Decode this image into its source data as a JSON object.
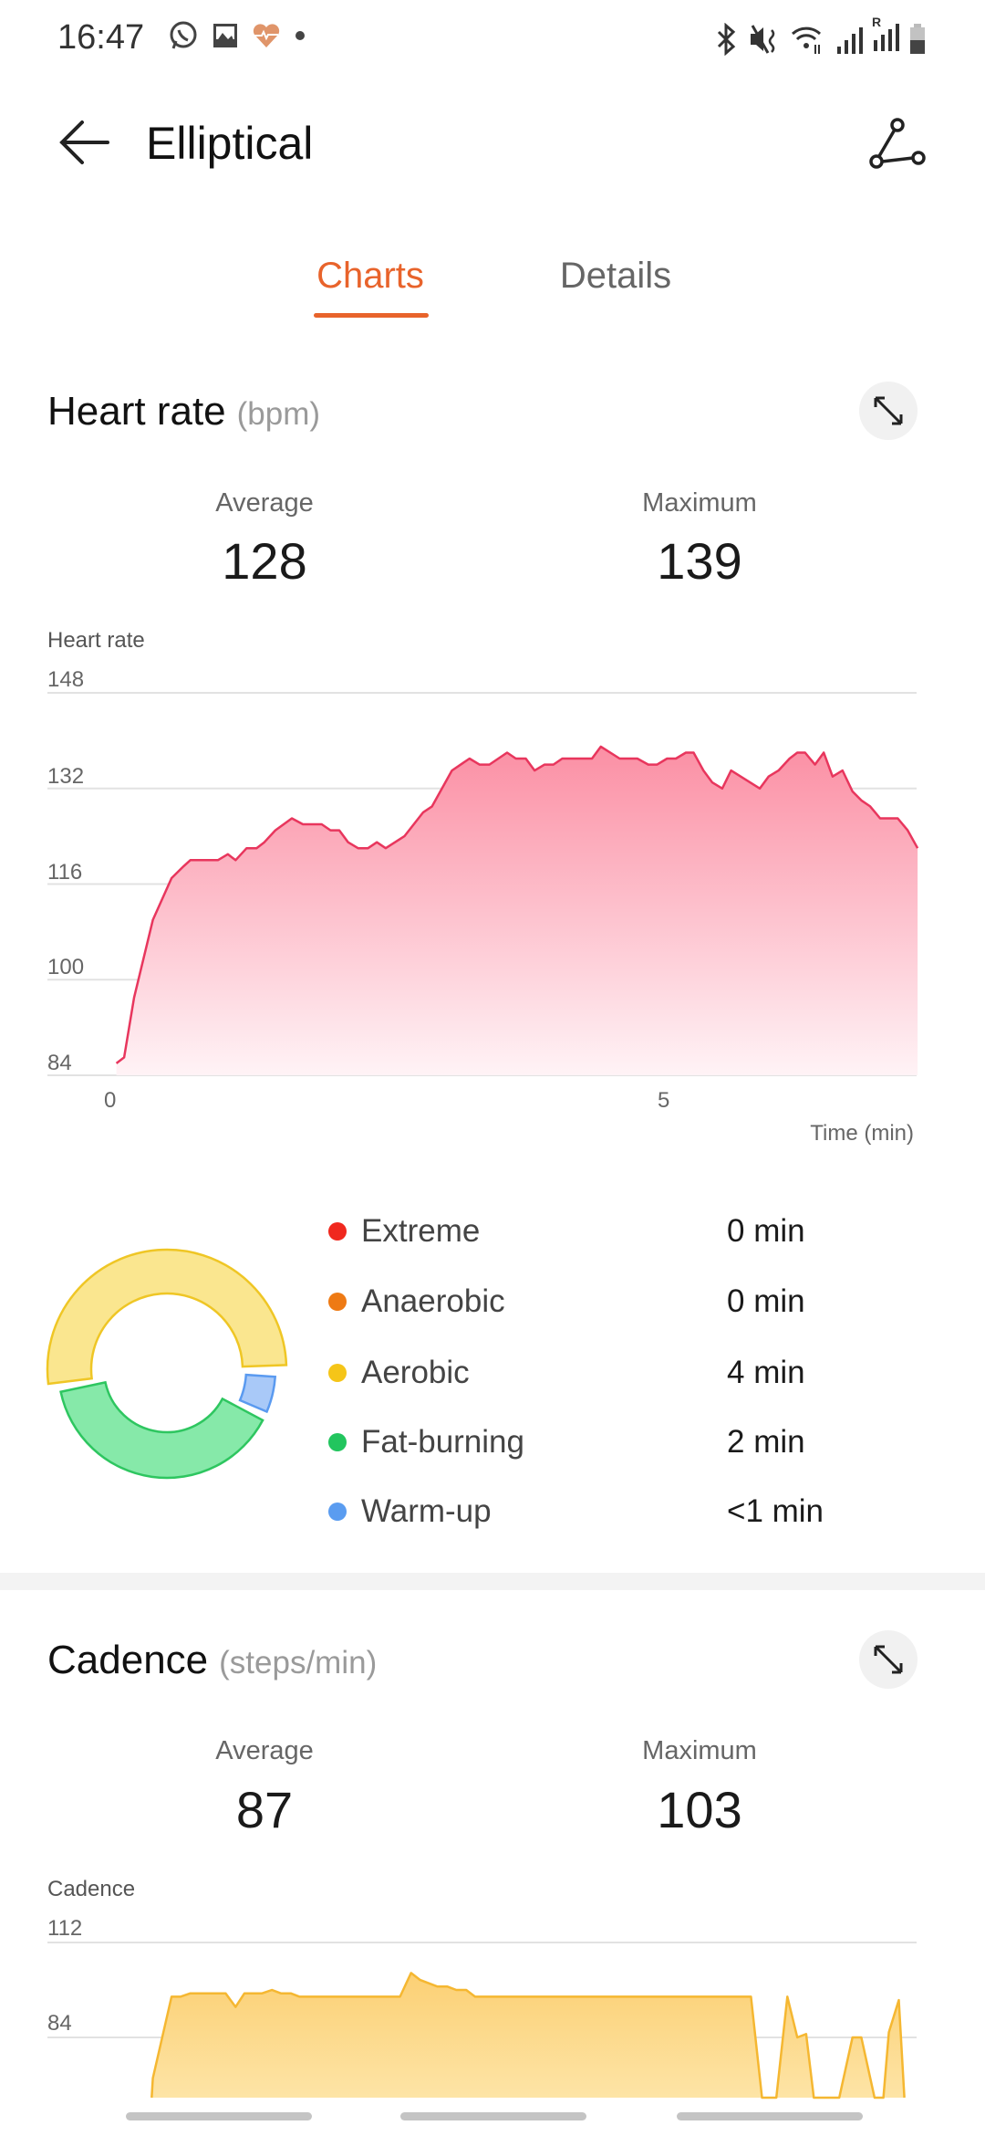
{
  "status_bar": {
    "time": "16:47",
    "left_icons": [
      "whatsapp-icon",
      "gallery-icon",
      "health-heart-icon",
      "dot-icon"
    ],
    "right_icons": [
      "bluetooth-icon",
      "mute-icon",
      "wifi-icon",
      "signal-icon",
      "roaming-signal-icon",
      "battery-icon"
    ],
    "roaming_label": "R"
  },
  "header": {
    "title": "Elliptical",
    "back_icon": "arrow-left-icon",
    "action_icon": "route-icon"
  },
  "tabs": [
    {
      "label": "Charts",
      "active": true
    },
    {
      "label": "Details",
      "active": false
    }
  ],
  "accent_color": "#e8632b",
  "heart_rate": {
    "title": "Heart rate",
    "unit": "(bpm)",
    "average_label": "Average",
    "average": "128",
    "maximum_label": "Maximum",
    "maximum": "139"
  },
  "zones": [
    {
      "name": "Extreme",
      "value": "0 min",
      "color": "#f0281e"
    },
    {
      "name": "Anaerobic",
      "value": "0 min",
      "color": "#ee7a14"
    },
    {
      "name": "Aerobic",
      "value": "4 min",
      "color": "#f5c518"
    },
    {
      "name": "Fat-burning",
      "value": "2 min",
      "color": "#22c55e"
    },
    {
      "name": "Warm-up",
      "value": "<1 min",
      "color": "#5a9cf0"
    }
  ],
  "cadence": {
    "title": "Cadence",
    "unit": "(steps/min)",
    "average_label": "Average",
    "average": "87",
    "maximum_label": "Maximum",
    "maximum": "103"
  },
  "chart_data": [
    {
      "type": "area",
      "ylabel": "Heart rate",
      "xlabel": "Time (min)",
      "ylim": [
        84,
        148
      ],
      "yticks": [
        "148",
        "132",
        "116",
        "100",
        "84"
      ],
      "xticks": [
        "0",
        "5"
      ],
      "grid": true,
      "color": "#e8365d",
      "x": [
        0.03,
        0.1,
        0.19,
        0.36,
        0.53,
        0.64,
        0.7,
        0.95,
        1.04,
        1.11,
        1.21,
        1.3,
        1.37,
        1.47,
        1.62,
        1.72,
        1.89,
        1.97,
        2.05,
        2.13,
        2.22,
        2.31,
        2.39,
        2.47,
        2.64,
        2.81,
        2.89,
        3.07,
        3.23,
        3.32,
        3.41,
        3.57,
        3.65,
        3.74,
        3.82,
        3.91,
        3.99,
        4.07,
        4.34,
        4.42,
        4.59,
        4.75,
        4.85,
        4.93,
        5.02,
        5.1,
        5.19,
        5.26,
        5.35,
        5.43,
        5.52,
        5.6,
        5.86,
        5.94,
        6.03,
        6.13,
        6.2,
        6.27,
        6.36,
        6.44,
        6.52,
        6.61,
        6.7,
        6.78,
        6.86,
        6.95,
        7.11,
        7.2,
        7.29
      ],
      "y": [
        86,
        87,
        97,
        110,
        117,
        119,
        120,
        120,
        121,
        120,
        122,
        122,
        123,
        125,
        127,
        126,
        126,
        125,
        125,
        123,
        122,
        122,
        123,
        122,
        124,
        128,
        129,
        135,
        137,
        136,
        136,
        138,
        137,
        137,
        135,
        136,
        136,
        137,
        137,
        139,
        137,
        137,
        136,
        136,
        137,
        137,
        138,
        138,
        135,
        133,
        132,
        135,
        132,
        134,
        135,
        137,
        138,
        138,
        136,
        138,
        134,
        135,
        131.5,
        130,
        129,
        127,
        127,
        125,
        122
      ]
    },
    {
      "type": "area",
      "ylabel": "Cadence",
      "ylim": [
        56,
        112
      ],
      "yticks": [
        "112",
        "84"
      ],
      "grid": true,
      "color": "#f5b731",
      "x": [
        0.35,
        0.36,
        0.53,
        0.61,
        0.7,
        1.02,
        1.11,
        1.19,
        1.35,
        1.44,
        1.52,
        1.61,
        1.69,
        2.6,
        2.7,
        2.78,
        2.94,
        3.03,
        3.11,
        3.2,
        3.28,
        5.78,
        5.88,
        6.01,
        6.11,
        6.2,
        6.28,
        6.35,
        6.58,
        6.7,
        6.78,
        6.9,
        6.98,
        7.03,
        7.12,
        7.17
      ],
      "y": [
        56,
        72,
        96,
        96,
        97,
        97,
        93,
        97,
        97,
        98,
        97,
        97,
        96,
        96,
        103,
        101,
        99,
        99,
        98,
        98,
        96,
        96,
        56,
        56,
        96,
        84,
        85,
        56,
        56,
        84,
        84,
        56,
        56,
        85.5,
        95,
        56
      ]
    }
  ]
}
